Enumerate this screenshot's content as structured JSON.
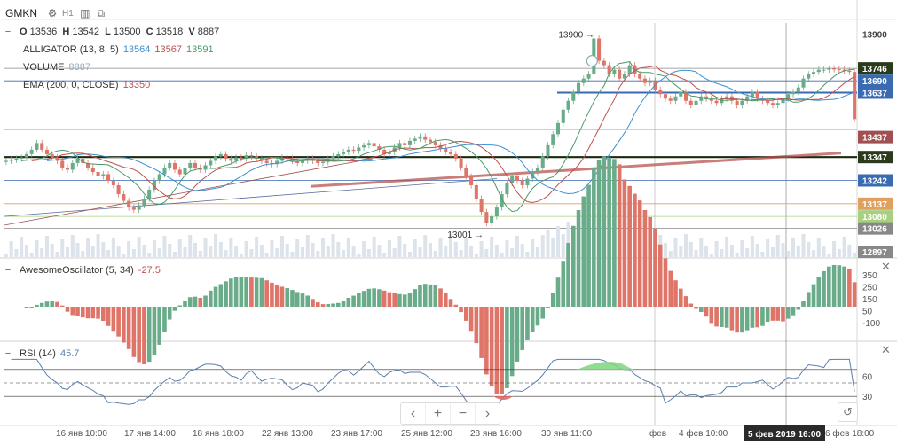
{
  "header": {
    "symbol": "GMKN",
    "timeframe": "H1",
    "icons": [
      "gear-icon",
      "bar-chart-icon",
      "compare-icon"
    ],
    "ohlcv": {
      "o_label": "O",
      "o": "13536",
      "h_label": "H",
      "h": "13542",
      "l_label": "L",
      "l": "13500",
      "c_label": "C",
      "c": "13518",
      "v_label": "V",
      "v": "8887"
    }
  },
  "legend": {
    "alligator_name": "ALLIGATOR (13, 8, 5)",
    "alligator_jaw": "13564",
    "alligator_teeth": "13567",
    "alligator_lips": "13591",
    "volume_name": "VOLUME",
    "volume_value": "8887",
    "ema_name": "EMA (200, 0, CLOSE)",
    "ema_value": "13350",
    "ao_name": "AwesomeOscillator (5, 34)",
    "ao_value": "-27.5",
    "rsi_name": "RSI (14)",
    "rsi_value": "45.7"
  },
  "colors": {
    "up": "#6aab8a",
    "down": "#df7468",
    "jaw": "#3f8fd0",
    "teeth": "#c0504d",
    "lips": "#4a9a6a",
    "ema": "#b85450",
    "rsi": "#5a7fb0",
    "hline_blue": "#3a6ab0",
    "hline_dark": "#1a2a10",
    "hline_gray": "#888888",
    "hline_orange": "#e0a060",
    "hline_green": "#a8d080",
    "hline_maroon": "#a05050"
  },
  "price_tags": [
    {
      "label": "13900",
      "style": "plain"
    },
    {
      "label": "13746",
      "style": "dark"
    },
    {
      "label": "13690",
      "style": "blue"
    },
    {
      "label": "13637",
      "style": "blue"
    },
    {
      "label": "13437",
      "style": "maroon"
    },
    {
      "label": "13347",
      "style": "dark"
    },
    {
      "label": "13242",
      "style": "blue"
    },
    {
      "label": "13137",
      "style": "orange"
    },
    {
      "label": "13080",
      "style": "green"
    },
    {
      "label": "13026",
      "style": "gray"
    },
    {
      "label": "12897",
      "style": "gray"
    }
  ],
  "annotations": {
    "max_label": "13900",
    "min_label": "13001"
  },
  "ao_ticks": [
    "350",
    "250",
    "150",
    "50",
    "-100"
  ],
  "rsi_ticks": [
    "60",
    "30"
  ],
  "x_ticks": [
    "16 янв 10:00",
    "17 янв 14:00",
    "18 янв 18:00",
    "22 янв 13:00",
    "23 янв 17:00",
    "25 янв 12:00",
    "28 янв 16:00",
    "30 янв 11:00",
    "фев",
    "4 фев 10:00",
    "5 фев 2019 16:00",
    "6 фев 18:00"
  ],
  "crosshair_label": "5 фев 2019 16:00",
  "controls": {
    "prev": "‹",
    "zoom_in": "+",
    "zoom_out": "−",
    "next": "›",
    "reset": "↺"
  },
  "chart_data": [
    {
      "type": "candlestick",
      "title": "GMKN H1",
      "ylim": [
        12897,
        13950
      ],
      "close": [
        13330,
        13335,
        13340,
        13345,
        13360,
        13380,
        13410,
        13380,
        13360,
        13345,
        13330,
        13300,
        13290,
        13320,
        13340,
        13320,
        13300,
        13280,
        13260,
        13270,
        13240,
        13220,
        13180,
        13150,
        13120,
        13110,
        13130,
        13160,
        13200,
        13240,
        13270,
        13300,
        13320,
        13290,
        13270,
        13300,
        13320,
        13300,
        13290,
        13310,
        13330,
        13350,
        13360,
        13340,
        13330,
        13345,
        13340,
        13355,
        13350,
        13340,
        13330,
        13320,
        13315,
        13330,
        13345,
        13340,
        13330,
        13320,
        13330,
        13340,
        13330,
        13320,
        13325,
        13340,
        13350,
        13360,
        13370,
        13380,
        13375,
        13390,
        13400,
        13410,
        13395,
        13380,
        13360,
        13370,
        13390,
        13410,
        13400,
        13420,
        13430,
        13440,
        13425,
        13415,
        13400,
        13385,
        13370,
        13360,
        13340,
        13300,
        13260,
        13220,
        13160,
        13100,
        13050,
        13080,
        13120,
        13180,
        13230,
        13260,
        13240,
        13220,
        13250,
        13280,
        13300,
        13350,
        13400,
        13450,
        13500,
        13560,
        13600,
        13640,
        13680,
        13700,
        13720,
        13880,
        13780,
        13760,
        13720,
        13740,
        13700,
        13720,
        13760,
        13720,
        13700,
        13680,
        13690,
        13650,
        13630,
        13610,
        13600,
        13620,
        13640,
        13600,
        13580,
        13600,
        13620,
        13610,
        13600,
        13590,
        13610,
        13620,
        13600,
        13580,
        13600,
        13620,
        13640,
        13610,
        13600,
        13590,
        13580,
        13590,
        13610,
        13630,
        13640,
        13660,
        13700,
        13720,
        13730,
        13740,
        13740,
        13745,
        13742,
        13740,
        13735,
        13730,
        13518
      ],
      "x_labels": [
        "16 янв 10:00",
        "17 янв 14:00",
        "18 янв 18:00",
        "22 янв 13:00",
        "23 янв 17:00",
        "25 янв 12:00",
        "28 янв 16:00",
        "30 янв 11:00",
        "фев",
        "4 фев 10:00",
        "5 фев 2019 16:00",
        "6 фев 18:00"
      ],
      "last_bar": {
        "open": 13536,
        "high": 13542,
        "low": 13500,
        "close": 13518,
        "volume": 8887
      },
      "indicators": {
        "alligator": {
          "params": "13, 8, 5",
          "jaw": 13564,
          "teeth": 13567,
          "lips": 13591
        },
        "ema": {
          "params": "200, 0, CLOSE",
          "value": 13350
        }
      },
      "max": 13900,
      "min": 13001,
      "horizontal_levels": [
        13746,
        13690,
        13637,
        13437,
        13347,
        13242,
        13137,
        13080,
        13026
      ]
    },
    {
      "type": "bar",
      "title": "AwesomeOscillator (5, 34)",
      "last_value": -27.5,
      "yticks": [
        350,
        250,
        150,
        50,
        -100
      ]
    },
    {
      "type": "line",
      "title": "RSI (14)",
      "last_value": 45.7,
      "ylim": [
        0,
        100
      ],
      "levels": [
        70,
        50,
        30
      ]
    }
  ]
}
